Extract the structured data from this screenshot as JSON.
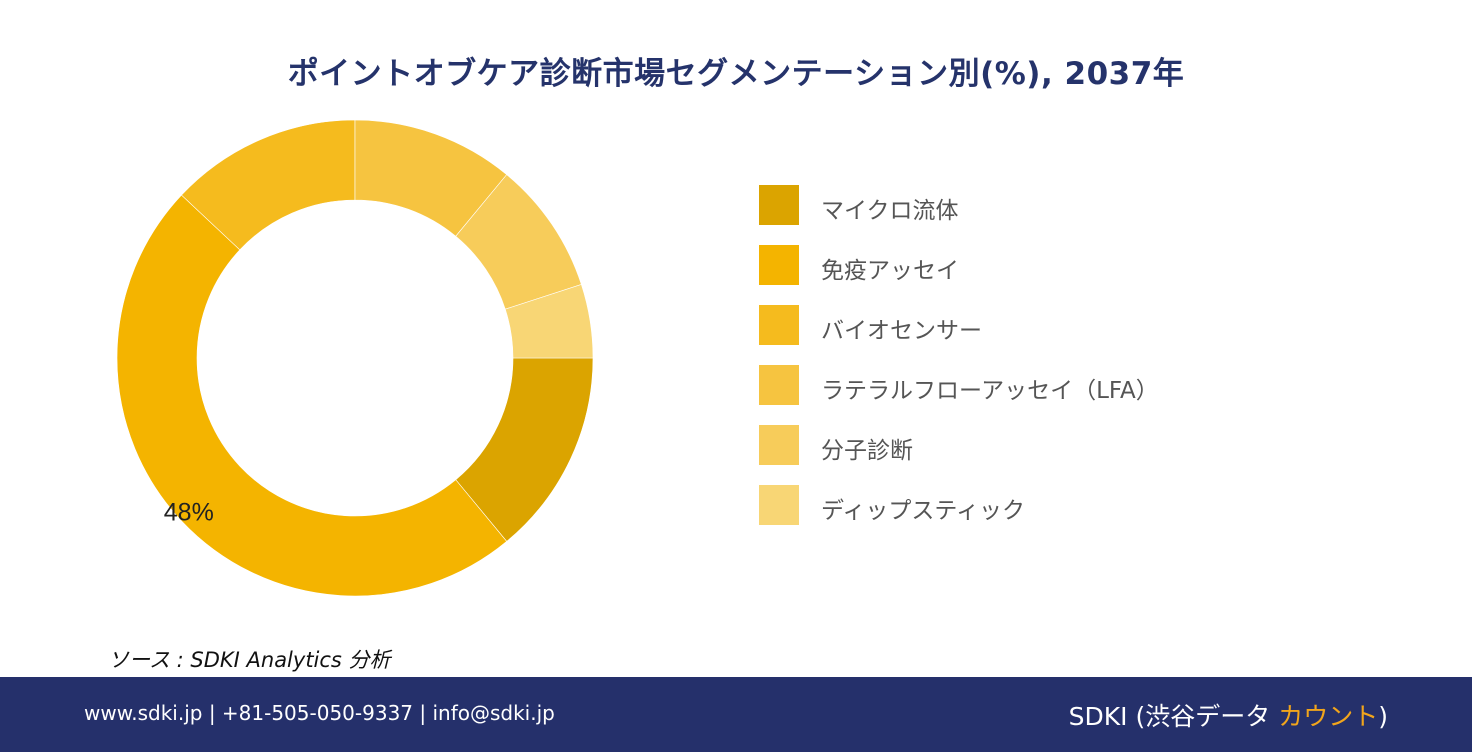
{
  "title": "ポイントオブケア診断市場セグメンテーション別(%), 2037年",
  "chart_data": {
    "type": "pie",
    "donut": true,
    "title": "ポイントオブケア診断市場セグメンテーション別(%), 2037年",
    "categories": [
      "マイクロ流体",
      "免疫アッセイ",
      "バイオセンサー",
      "ラテラルフローアッセイ（LFA）",
      "分子診断",
      "ディップスティック"
    ],
    "values": [
      14,
      48,
      13,
      11,
      9,
      5
    ],
    "colors": [
      "#dba400",
      "#f4b400",
      "#f5bb1e",
      "#f6c440",
      "#f7cc5a",
      "#f8d675"
    ],
    "data_labels": [
      "",
      "48%",
      "",
      "",
      "",
      ""
    ],
    "legend_position": "right"
  },
  "source": "ソース : SDKI Analytics  分析",
  "footer": {
    "contact": "www.sdki.jp | +81-505-050-9337 | info@sdki.jp",
    "brand_prefix": "SDKI (渋谷データ ",
    "brand_accent": "カウント",
    "brand_suffix": ")"
  }
}
